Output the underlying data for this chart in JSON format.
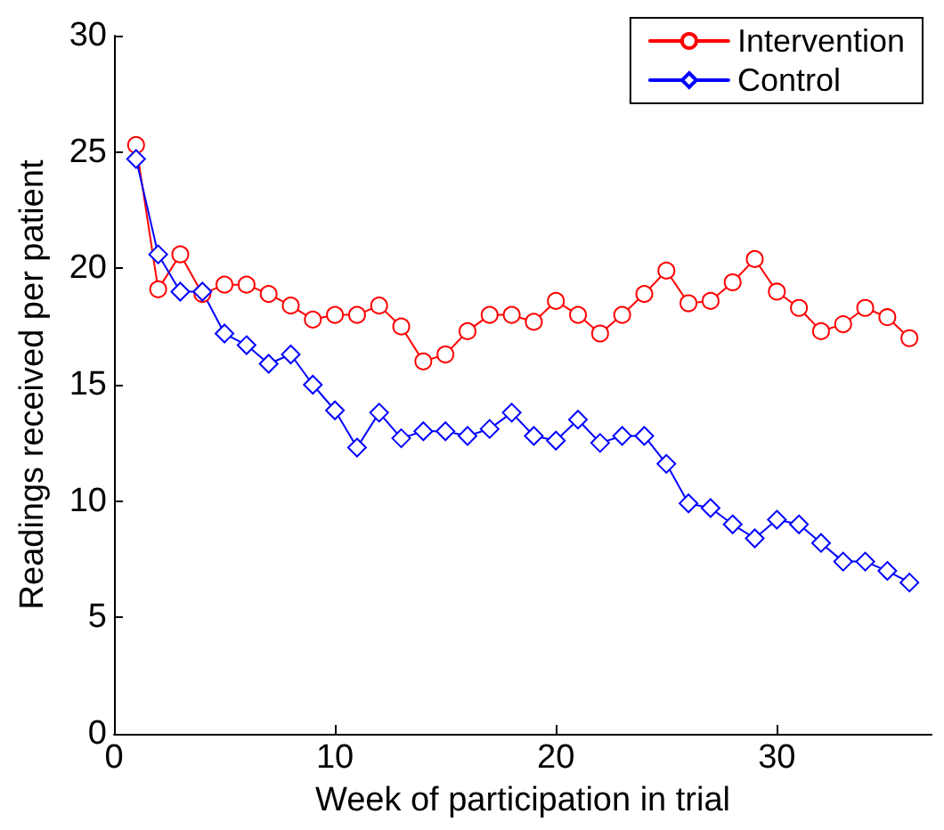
{
  "chart_data": {
    "type": "line",
    "xlabel": "Week of participation in trial",
    "ylabel": "Readings received per patient",
    "x": [
      1,
      2,
      3,
      4,
      5,
      6,
      7,
      8,
      9,
      10,
      11,
      12,
      13,
      14,
      15,
      16,
      17,
      18,
      19,
      20,
      21,
      22,
      23,
      24,
      25,
      26,
      27,
      28,
      29,
      30,
      31,
      32,
      33,
      34,
      35,
      36
    ],
    "series": [
      {
        "name": "Intervention",
        "color": "#ff0000",
        "marker": "circle",
        "values": [
          25.3,
          19.1,
          20.6,
          18.9,
          19.3,
          19.3,
          18.9,
          18.4,
          17.8,
          18.0,
          18.0,
          18.4,
          17.5,
          16.0,
          16.3,
          17.3,
          18.0,
          18.0,
          17.7,
          18.6,
          18.0,
          17.2,
          18.0,
          18.9,
          19.9,
          18.5,
          18.6,
          19.4,
          20.4,
          19.0,
          18.3,
          17.3,
          17.6,
          18.3,
          17.9,
          17.0
        ]
      },
      {
        "name": "Control",
        "color": "#0000ff",
        "marker": "diamond",
        "values": [
          24.7,
          20.6,
          19.0,
          19.0,
          17.2,
          16.7,
          15.9,
          16.3,
          15.0,
          13.9,
          12.3,
          13.8,
          12.7,
          13.0,
          13.0,
          12.8,
          13.1,
          13.8,
          12.8,
          12.6,
          13.5,
          12.5,
          12.8,
          12.8,
          11.6,
          9.9,
          9.7,
          9.0,
          8.4,
          9.2,
          9.0,
          8.2,
          7.4,
          7.4,
          7.0,
          6.5
        ]
      }
    ],
    "xlim": [
      0,
      37
    ],
    "xticks": [
      0,
      10,
      20,
      30
    ],
    "ylim": [
      0,
      30
    ],
    "yticks": [
      0,
      5,
      10,
      15,
      20,
      25,
      30
    ],
    "grid": false,
    "legend": "top right",
    "line_style": "solid"
  }
}
